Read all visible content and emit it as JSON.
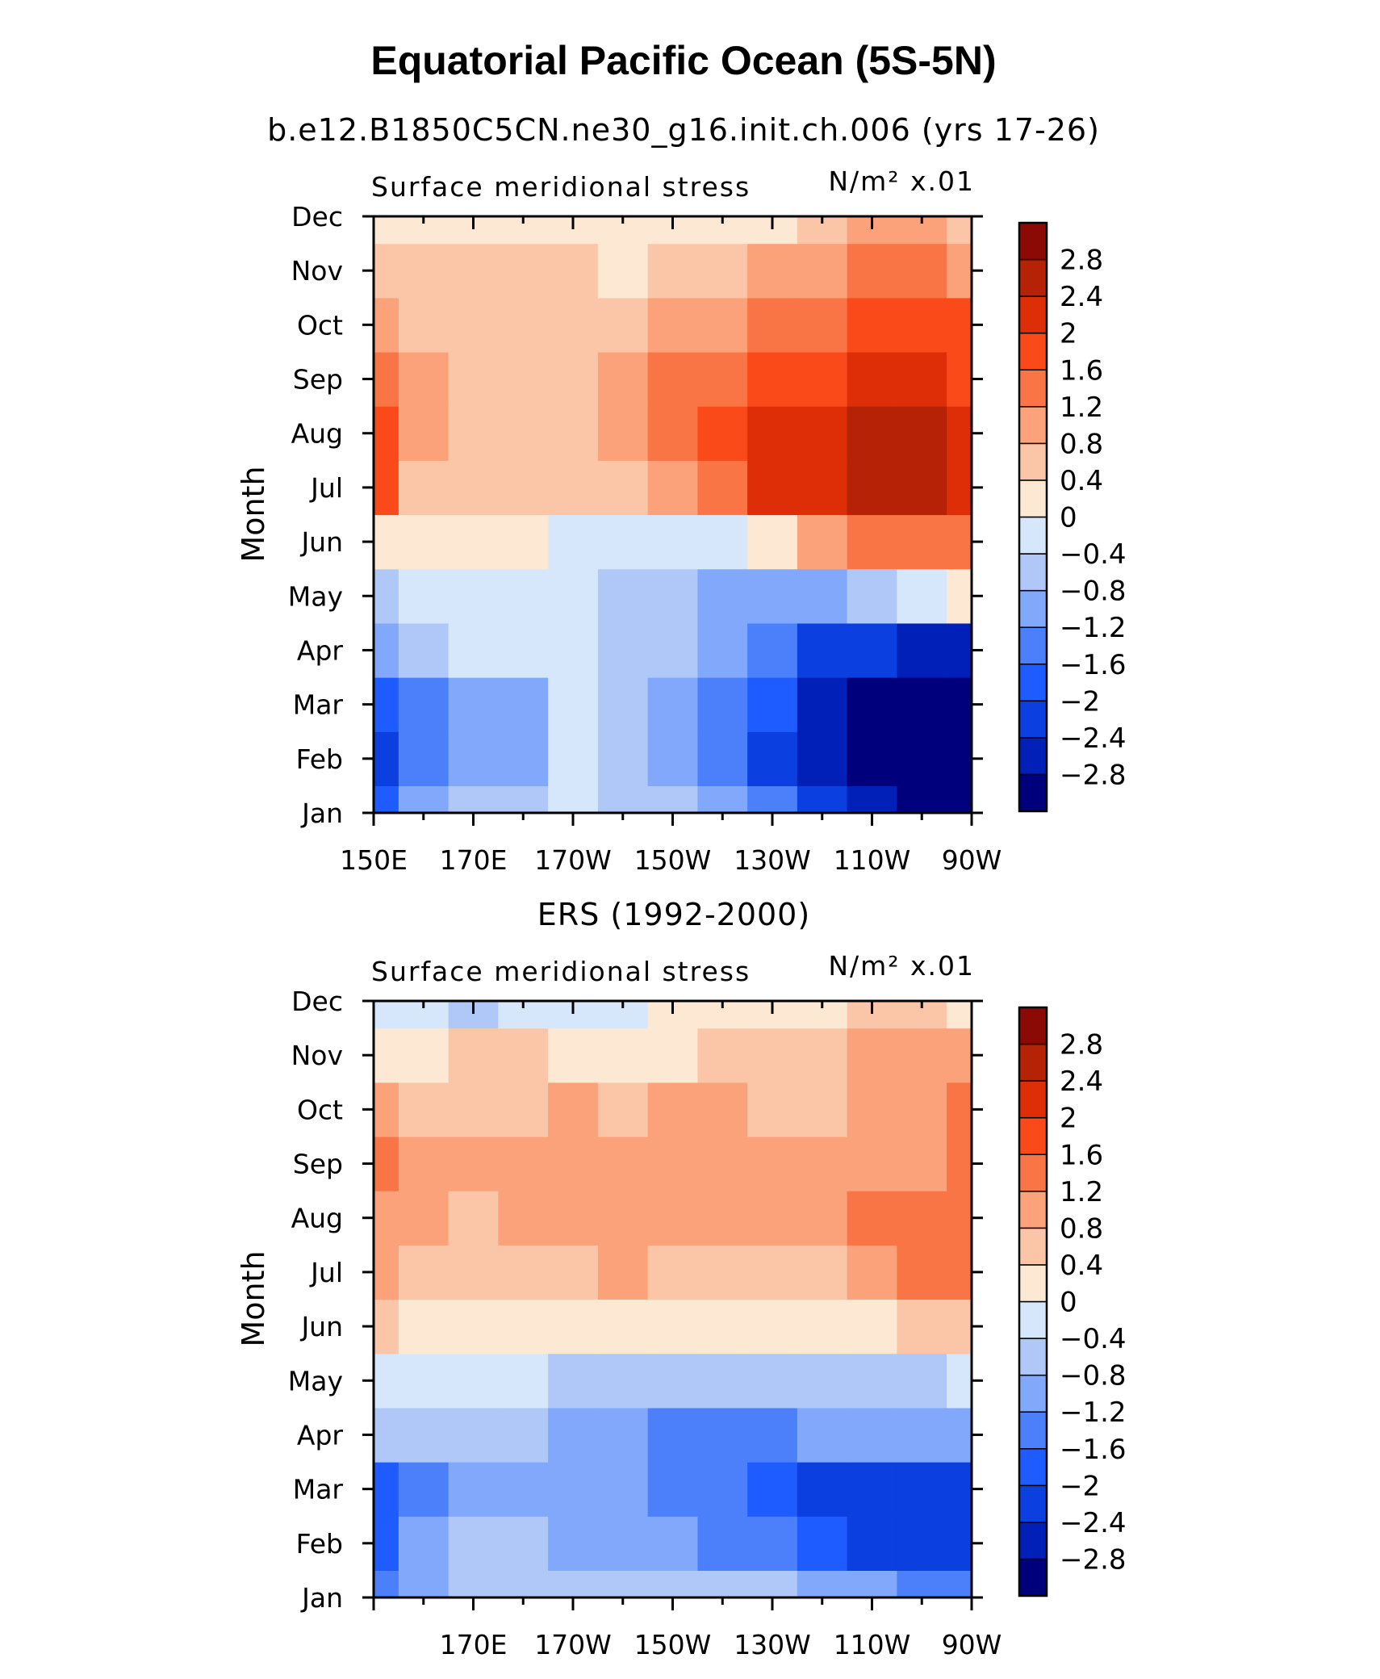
{
  "figure": {
    "title": "Equatorial Pacific Ocean (5S-5N)"
  },
  "chart_data": [
    {
      "type": "heatmap",
      "title": "b.e12.B1850C5CN.ne30_g16.init.ch.006 (yrs 17-26)",
      "left_label": "Surface meridional stress",
      "units": "N/m² x.01",
      "ylabel": "Month",
      "xlabel": "",
      "x_tick_labels": [
        "150E",
        "170E",
        "170W",
        "150W",
        "130W",
        "110W",
        "90W"
      ],
      "y_tick_labels": [
        "Jan",
        "Feb",
        "Mar",
        "Apr",
        "May",
        "Jun",
        "Jul",
        "Aug",
        "Sep",
        "Oct",
        "Nov",
        "Dec"
      ],
      "x": [
        150,
        160,
        170,
        180,
        190,
        200,
        210,
        220,
        230,
        240,
        250,
        260,
        270
      ],
      "y": [
        1,
        2,
        3,
        4,
        5,
        6,
        7,
        8,
        9,
        10,
        11,
        12
      ],
      "values": [
        [
          -1.8,
          -1.2,
          -0.8,
          -0.8,
          -0.4,
          -0.8,
          -0.8,
          -1.2,
          -1.6,
          -2.4,
          -2.8,
          -3.0,
          -3.0
        ],
        [
          -2.2,
          -1.4,
          -1.2,
          -1.2,
          -0.4,
          -0.8,
          -1.2,
          -1.6,
          -2.2,
          -2.8,
          -3.0,
          -3.0,
          -3.0
        ],
        [
          -2.0,
          -1.4,
          -1.2,
          -1.0,
          -0.4,
          -0.6,
          -1.0,
          -1.4,
          -2.0,
          -2.6,
          -3.0,
          -3.0,
          -3.0
        ],
        [
          -1.2,
          -0.8,
          -0.4,
          -0.4,
          -0.4,
          -0.6,
          -0.8,
          -1.2,
          -1.6,
          -2.2,
          -2.4,
          -2.6,
          -2.6
        ],
        [
          -0.6,
          -0.4,
          -0.2,
          -0.2,
          -0.2,
          -0.6,
          -0.8,
          -1.0,
          -1.0,
          -1.0,
          -0.8,
          -0.4,
          0.2
        ],
        [
          0.2,
          0.2,
          0.2,
          0.2,
          -0.2,
          -0.2,
          -0.4,
          -0.2,
          0.2,
          0.8,
          1.2,
          1.4,
          1.4
        ],
        [
          1.8,
          0.6,
          0.4,
          0.4,
          0.4,
          0.6,
          0.8,
          1.4,
          2.0,
          2.2,
          2.4,
          2.6,
          2.2
        ],
        [
          1.6,
          1.0,
          0.6,
          0.6,
          0.6,
          0.8,
          1.2,
          1.6,
          2.0,
          2.2,
          2.4,
          2.6,
          2.2
        ],
        [
          1.2,
          0.8,
          0.6,
          0.6,
          0.6,
          0.8,
          1.2,
          1.4,
          1.6,
          1.8,
          2.0,
          2.0,
          1.8
        ],
        [
          1.0,
          0.6,
          0.6,
          0.6,
          0.6,
          0.6,
          0.8,
          1.0,
          1.2,
          1.4,
          1.6,
          1.6,
          1.6
        ],
        [
          0.6,
          0.4,
          0.6,
          0.6,
          0.4,
          0.2,
          0.4,
          0.6,
          0.8,
          1.0,
          1.2,
          1.2,
          1.0
        ],
        [
          0.2,
          0.2,
          0.2,
          0.2,
          0.2,
          0.2,
          0.2,
          0.2,
          0.2,
          0.6,
          0.8,
          0.8,
          0.6
        ]
      ],
      "colorbar": {
        "levels": [
          -2.8,
          -2.4,
          -2,
          -1.6,
          -1.2,
          -0.8,
          -0.4,
          0,
          0.4,
          0.8,
          1.2,
          1.6,
          2,
          2.4,
          2.8
        ],
        "labels": [
          "-2.8",
          "-2.4",
          "-2",
          "-1.6",
          "-1.2",
          "-0.8",
          "-0.4",
          "0",
          "0.4",
          "0.8",
          "1.2",
          "1.6",
          "2",
          "2.4",
          "2.8"
        ]
      }
    },
    {
      "type": "heatmap",
      "title": "ERS (1992-2000)",
      "left_label": "Surface meridional stress",
      "units": "N/m² x.01",
      "ylabel": "Month",
      "xlabel": "",
      "x_tick_labels": [
        "170E",
        "170W",
        "150W",
        "130W",
        "110W",
        "90W"
      ],
      "y_tick_labels": [
        "Jan",
        "Feb",
        "Mar",
        "Apr",
        "May",
        "Jun",
        "Jul",
        "Aug",
        "Sep",
        "Oct",
        "Nov",
        "Dec"
      ],
      "x": [
        150,
        160,
        170,
        180,
        190,
        200,
        210,
        220,
        230,
        240,
        250,
        260,
        270
      ],
      "y": [
        1,
        2,
        3,
        4,
        5,
        6,
        7,
        8,
        9,
        10,
        11,
        12
      ],
      "values": [
        [
          -1.4,
          -1.2,
          -0.8,
          -0.8,
          -0.6,
          -0.6,
          -0.8,
          -0.6,
          -0.8,
          -1.0,
          -1.2,
          -1.6,
          -1.6
        ],
        [
          -1.8,
          -1.2,
          -0.8,
          -0.8,
          -1.2,
          -1.0,
          -1.2,
          -1.4,
          -1.6,
          -2.0,
          -2.2,
          -2.4,
          -2.4
        ],
        [
          -2.0,
          -1.4,
          -1.2,
          -1.2,
          -1.2,
          -1.2,
          -1.4,
          -1.6,
          -1.8,
          -2.2,
          -2.4,
          -2.4,
          -2.2
        ],
        [
          -0.6,
          -0.8,
          -0.8,
          -0.8,
          -1.2,
          -1.2,
          -1.4,
          -1.4,
          -1.4,
          -1.2,
          -1.2,
          -1.2,
          -1.2
        ],
        [
          -0.2,
          -0.4,
          -0.2,
          -0.4,
          -0.6,
          -0.6,
          -0.8,
          -0.8,
          -0.8,
          -0.8,
          -0.6,
          -0.6,
          -0.4
        ],
        [
          0.4,
          0.2,
          0.2,
          0.2,
          0.2,
          0.2,
          0.2,
          0.2,
          0.2,
          0.2,
          0.2,
          0.4,
          0.4
        ],
        [
          0.8,
          0.6,
          0.6,
          0.6,
          0.6,
          0.8,
          0.6,
          0.6,
          0.6,
          0.6,
          0.8,
          1.2,
          1.2
        ],
        [
          0.8,
          0.8,
          0.6,
          0.8,
          0.8,
          0.8,
          0.8,
          0.8,
          0.8,
          0.8,
          1.2,
          1.4,
          1.4
        ],
        [
          1.2,
          0.8,
          0.8,
          0.8,
          0.8,
          0.8,
          0.8,
          0.8,
          0.8,
          0.8,
          0.8,
          1.0,
          1.4
        ],
        [
          0.8,
          0.6,
          0.6,
          0.6,
          0.8,
          0.6,
          0.8,
          0.8,
          0.6,
          0.6,
          0.8,
          1.0,
          1.2
        ],
        [
          0.2,
          0.2,
          0.4,
          0.4,
          0.2,
          0.2,
          0.2,
          0.4,
          0.4,
          0.4,
          0.8,
          0.8,
          1.0
        ],
        [
          -0.4,
          -0.2,
          -0.6,
          -0.2,
          -0.2,
          -0.4,
          0.2,
          0.2,
          0.2,
          0.2,
          0.4,
          0.4,
          0.2
        ]
      ],
      "colorbar": {
        "levels": [
          -2.8,
          -2.4,
          -2,
          -1.6,
          -1.2,
          -0.8,
          -0.4,
          0,
          0.4,
          0.8,
          1.2,
          1.6,
          2,
          2.4,
          2.8
        ],
        "labels": [
          "-2.8",
          "-2.4",
          "-2",
          "-1.6",
          "-1.2",
          "-0.8",
          "-0.4",
          "0",
          "0.4",
          "0.8",
          "1.2",
          "1.6",
          "2",
          "2.4",
          "2.8"
        ]
      }
    }
  ],
  "colors": {
    "palette": [
      "#00007d",
      "#0020b8",
      "#0b3fe0",
      "#1f5cff",
      "#4c80fb",
      "#82a8fb",
      "#b0c8f8",
      "#d6e7fb",
      "#fde8d4",
      "#fbc6a8",
      "#fba27a",
      "#fa7545",
      "#fb4a1a",
      "#dd2e08",
      "#b62206",
      "#8b0a05"
    ]
  }
}
